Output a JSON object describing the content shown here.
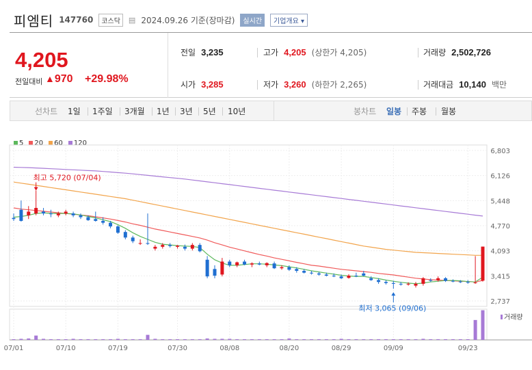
{
  "header": {
    "name": "피엠티",
    "code": "147760",
    "market": "코스닥",
    "date": "2024.09.26 기준(장마감)",
    "realtime_btn": "실시간",
    "company_btn": "기업개요"
  },
  "price": {
    "current": "4,205",
    "prev_label": "전일대비",
    "change": "970",
    "rate": "+29.98%"
  },
  "stats": {
    "prev_close_label": "전일",
    "prev_close": "3,235",
    "high_label": "고가",
    "high": "4,205",
    "high_sub": "(상한가 4,205)",
    "volume_label": "거래량",
    "volume": "2,502,726",
    "open_label": "시가",
    "open": "3,285",
    "low_label": "저가",
    "low": "3,260",
    "low_sub": "(하한가 2,265)",
    "amount_label": "거래대금",
    "amount": "10,140",
    "amount_unit": "백만"
  },
  "tabs": {
    "line_label": "선차트",
    "line_items": [
      "1일",
      "1주일",
      "3개월",
      "1년",
      "3년",
      "5년",
      "10년"
    ],
    "candle_label": "봉차트",
    "candle_items": [
      "일봉",
      "주봉",
      "월봉"
    ]
  },
  "colors": {
    "up": "#e0161e",
    "down": "#1f6fd1",
    "ma5": "#5cb85c",
    "ma20": "#f05a5a",
    "ma60": "#f2a44b",
    "ma120": "#a77ad6"
  },
  "chart_data": {
    "type": "candlestick",
    "legend": [
      {
        "name": "5",
        "color": "#5cb85c"
      },
      {
        "name": "20",
        "color": "#f05a5a"
      },
      {
        "name": "60",
        "color": "#f2a44b"
      },
      {
        "name": "120",
        "color": "#a77ad6"
      }
    ],
    "y_ticks": [
      6803,
      6126,
      5448,
      4770,
      4093,
      3415,
      2737
    ],
    "y_tick_labels": [
      "6,803",
      "6,126",
      "5,448",
      "4,770",
      "4,093",
      "3,415",
      "2,737"
    ],
    "ylim": [
      2737,
      6803
    ],
    "x_tick_labels": [
      "07/01",
      "07/10",
      "07/19",
      "07/30",
      "08/08",
      "08/20",
      "08/29",
      "09/09",
      "09/23"
    ],
    "max_annotation": "최고 5,720 (07/04)",
    "min_annotation": "최저 3,065 (09/06)",
    "volume_label": "거래량",
    "candles": [
      {
        "o": 4980,
        "h": 5100,
        "l": 4900,
        "c": 4950
      },
      {
        "o": 5200,
        "h": 5450,
        "l": 4880,
        "c": 4900
      },
      {
        "o": 5050,
        "h": 5300,
        "l": 4950,
        "c": 5150
      },
      {
        "o": 5100,
        "h": 5720,
        "l": 5050,
        "c": 5250
      },
      {
        "o": 5150,
        "h": 5250,
        "l": 5050,
        "c": 5100
      },
      {
        "o": 5100,
        "h": 5200,
        "l": 5000,
        "c": 5080
      },
      {
        "o": 5050,
        "h": 5150,
        "l": 5000,
        "c": 5100
      },
      {
        "o": 5100,
        "h": 5200,
        "l": 5050,
        "c": 5150
      },
      {
        "o": 5100,
        "h": 5150,
        "l": 5000,
        "c": 5050
      },
      {
        "o": 5050,
        "h": 5100,
        "l": 4950,
        "c": 5000
      },
      {
        "o": 5000,
        "h": 5050,
        "l": 4900,
        "c": 4920
      },
      {
        "o": 4950,
        "h": 5150,
        "l": 4880,
        "c": 4900
      },
      {
        "o": 4900,
        "h": 5000,
        "l": 4800,
        "c": 4850
      },
      {
        "o": 4850,
        "h": 4900,
        "l": 4700,
        "c": 4750
      },
      {
        "o": 4750,
        "h": 4780,
        "l": 4550,
        "c": 4580
      },
      {
        "o": 4600,
        "h": 4650,
        "l": 4400,
        "c": 4450
      },
      {
        "o": 4450,
        "h": 4500,
        "l": 4300,
        "c": 4350
      },
      {
        "o": 4300,
        "h": 4400,
        "l": 4250,
        "c": 4300
      },
      {
        "o": 4300,
        "h": 5100,
        "l": 4250,
        "c": 4280
      },
      {
        "o": 4150,
        "h": 4250,
        "l": 4100,
        "c": 4200
      },
      {
        "o": 4200,
        "h": 4300,
        "l": 4150,
        "c": 4250
      },
      {
        "o": 4250,
        "h": 4300,
        "l": 4180,
        "c": 4220
      },
      {
        "o": 4200,
        "h": 4250,
        "l": 4150,
        "c": 4230
      },
      {
        "o": 4200,
        "h": 4260,
        "l": 4100,
        "c": 4150
      },
      {
        "o": 4150,
        "h": 4300,
        "l": 4100,
        "c": 4250
      },
      {
        "o": 4250,
        "h": 4300,
        "l": 4050,
        "c": 4080
      },
      {
        "o": 3850,
        "h": 3950,
        "l": 3350,
        "c": 3400
      },
      {
        "o": 3600,
        "h": 3700,
        "l": 3350,
        "c": 3420
      },
      {
        "o": 3450,
        "h": 3900,
        "l": 3400,
        "c": 3800
      },
      {
        "o": 3800,
        "h": 3850,
        "l": 3650,
        "c": 3700
      },
      {
        "o": 3700,
        "h": 3800,
        "l": 3650,
        "c": 3780
      },
      {
        "o": 3800,
        "h": 3850,
        "l": 3700,
        "c": 3720
      },
      {
        "o": 3720,
        "h": 3780,
        "l": 3650,
        "c": 3750
      },
      {
        "o": 3750,
        "h": 3800,
        "l": 3700,
        "c": 3720
      },
      {
        "o": 3700,
        "h": 3780,
        "l": 3650,
        "c": 3760
      },
      {
        "o": 3750,
        "h": 3800,
        "l": 3600,
        "c": 3620
      },
      {
        "o": 3620,
        "h": 3700,
        "l": 3580,
        "c": 3650
      },
      {
        "o": 3650,
        "h": 3700,
        "l": 3550,
        "c": 3580
      },
      {
        "o": 3600,
        "h": 3650,
        "l": 3500,
        "c": 3550
      },
      {
        "o": 3550,
        "h": 3600,
        "l": 3480,
        "c": 3500
      },
      {
        "o": 3500,
        "h": 3550,
        "l": 3450,
        "c": 3480
      },
      {
        "o": 3480,
        "h": 3520,
        "l": 3420,
        "c": 3450
      },
      {
        "o": 3450,
        "h": 3500,
        "l": 3400,
        "c": 3420
      },
      {
        "o": 3420,
        "h": 3480,
        "l": 3380,
        "c": 3400
      },
      {
        "o": 3400,
        "h": 3450,
        "l": 3330,
        "c": 3350
      },
      {
        "o": 3360,
        "h": 3460,
        "l": 3340,
        "c": 3420
      },
      {
        "o": 3420,
        "h": 3500,
        "l": 3380,
        "c": 3400
      },
      {
        "o": 3480,
        "h": 3550,
        "l": 3400,
        "c": 3420
      },
      {
        "o": 3350,
        "h": 3400,
        "l": 3280,
        "c": 3300
      },
      {
        "o": 3300,
        "h": 3350,
        "l": 3200,
        "c": 3250
      },
      {
        "o": 3250,
        "h": 3300,
        "l": 3180,
        "c": 3220
      },
      {
        "o": 3220,
        "h": 3280,
        "l": 3065,
        "c": 3200
      },
      {
        "o": 3200,
        "h": 3250,
        "l": 3150,
        "c": 3180
      },
      {
        "o": 3180,
        "h": 3240,
        "l": 3150,
        "c": 3200
      },
      {
        "o": 3150,
        "h": 3250,
        "l": 3100,
        "c": 3200
      },
      {
        "o": 3200,
        "h": 3380,
        "l": 3150,
        "c": 3350
      },
      {
        "o": 3300,
        "h": 3350,
        "l": 3250,
        "c": 3280
      },
      {
        "o": 3300,
        "h": 3400,
        "l": 3260,
        "c": 3350
      },
      {
        "o": 3350,
        "h": 3380,
        "l": 3250,
        "c": 3280
      },
      {
        "o": 3280,
        "h": 3320,
        "l": 3240,
        "c": 3260
      },
      {
        "o": 3260,
        "h": 3300,
        "l": 3220,
        "c": 3250
      },
      {
        "o": 3250,
        "h": 3300,
        "l": 3200,
        "c": 3230
      },
      {
        "o": 3235,
        "h": 3950,
        "l": 3200,
        "c": 3235
      },
      {
        "o": 3285,
        "h": 4205,
        "l": 3260,
        "c": 4205
      }
    ],
    "ma5": [
      5000,
      5020,
      5050,
      5100,
      5120,
      5100,
      5100,
      5100,
      5090,
      5060,
      5020,
      4980,
      4930,
      4880,
      4800,
      4700,
      4580,
      4480,
      4400,
      4320,
      4270,
      4250,
      4230,
      4220,
      4210,
      4180,
      4000,
      3850,
      3760,
      3700,
      3700,
      3720,
      3740,
      3740,
      3730,
      3710,
      3690,
      3660,
      3630,
      3590,
      3550,
      3520,
      3490,
      3460,
      3430,
      3410,
      3400,
      3400,
      3370,
      3340,
      3300,
      3270,
      3240,
      3220,
      3200,
      3220,
      3250,
      3270,
      3290,
      3290,
      3280,
      3260,
      3250,
      3380
    ],
    "ma20": [
      5250,
      5220,
      5200,
      5180,
      5160,
      5140,
      5120,
      5100,
      5080,
      5060,
      5040,
      5010,
      4980,
      4950,
      4910,
      4870,
      4820,
      4780,
      4730,
      4680,
      4640,
      4600,
      4560,
      4520,
      4480,
      4440,
      4380,
      4310,
      4250,
      4190,
      4140,
      4090,
      4040,
      3990,
      3950,
      3900,
      3860,
      3820,
      3780,
      3740,
      3700,
      3680,
      3650,
      3620,
      3590,
      3570,
      3550,
      3530,
      3510,
      3480,
      3460,
      3440,
      3410,
      3380,
      3350,
      3330,
      3310,
      3300,
      3290,
      3280,
      3270,
      3260,
      3250,
      3290
    ],
    "ma60": [
      5950,
      5920,
      5890,
      5860,
      5830,
      5800,
      5770,
      5740,
      5710,
      5680,
      5650,
      5620,
      5590,
      5560,
      5530,
      5500,
      5460,
      5420,
      5380,
      5340,
      5300,
      5260,
      5220,
      5180,
      5140,
      5100,
      5060,
      5020,
      4980,
      4940,
      4900,
      4860,
      4820,
      4780,
      4740,
      4700,
      4660,
      4620,
      4580,
      4540,
      4500,
      4460,
      4420,
      4380,
      4340,
      4300,
      4260,
      4220,
      4190,
      4160,
      4130,
      4110,
      4090,
      4070,
      4050,
      4040,
      4030,
      4020,
      4010,
      4000,
      3990,
      3980,
      3970,
      3970
    ],
    "ma120": [
      6350,
      6345,
      6340,
      6330,
      6320,
      6310,
      6300,
      6290,
      6280,
      6270,
      6260,
      6250,
      6235,
      6220,
      6205,
      6190,
      6170,
      6150,
      6130,
      6110,
      6090,
      6070,
      6050,
      6030,
      6005,
      5980,
      5955,
      5930,
      5905,
      5880,
      5855,
      5830,
      5805,
      5780,
      5755,
      5730,
      5705,
      5680,
      5655,
      5630,
      5605,
      5580,
      5555,
      5530,
      5505,
      5480,
      5455,
      5430,
      5405,
      5380,
      5355,
      5330,
      5305,
      5280,
      5255,
      5230,
      5205,
      5180,
      5155,
      5130,
      5105,
      5080,
      5055,
      5030
    ],
    "volumes": [
      2,
      3,
      4,
      12,
      3,
      2,
      2,
      2,
      3,
      2,
      2,
      2,
      2,
      2,
      3,
      2,
      2,
      2,
      14,
      3,
      2,
      2,
      2,
      2,
      2,
      2,
      4,
      3,
      3,
      3,
      2,
      2,
      2,
      2,
      2,
      2,
      2,
      4,
      2,
      2,
      2,
      2,
      2,
      2,
      3,
      2,
      2,
      2,
      2,
      2,
      2,
      2,
      2,
      2,
      2,
      3,
      2,
      2,
      2,
      2,
      2,
      2,
      55,
      82
    ]
  }
}
